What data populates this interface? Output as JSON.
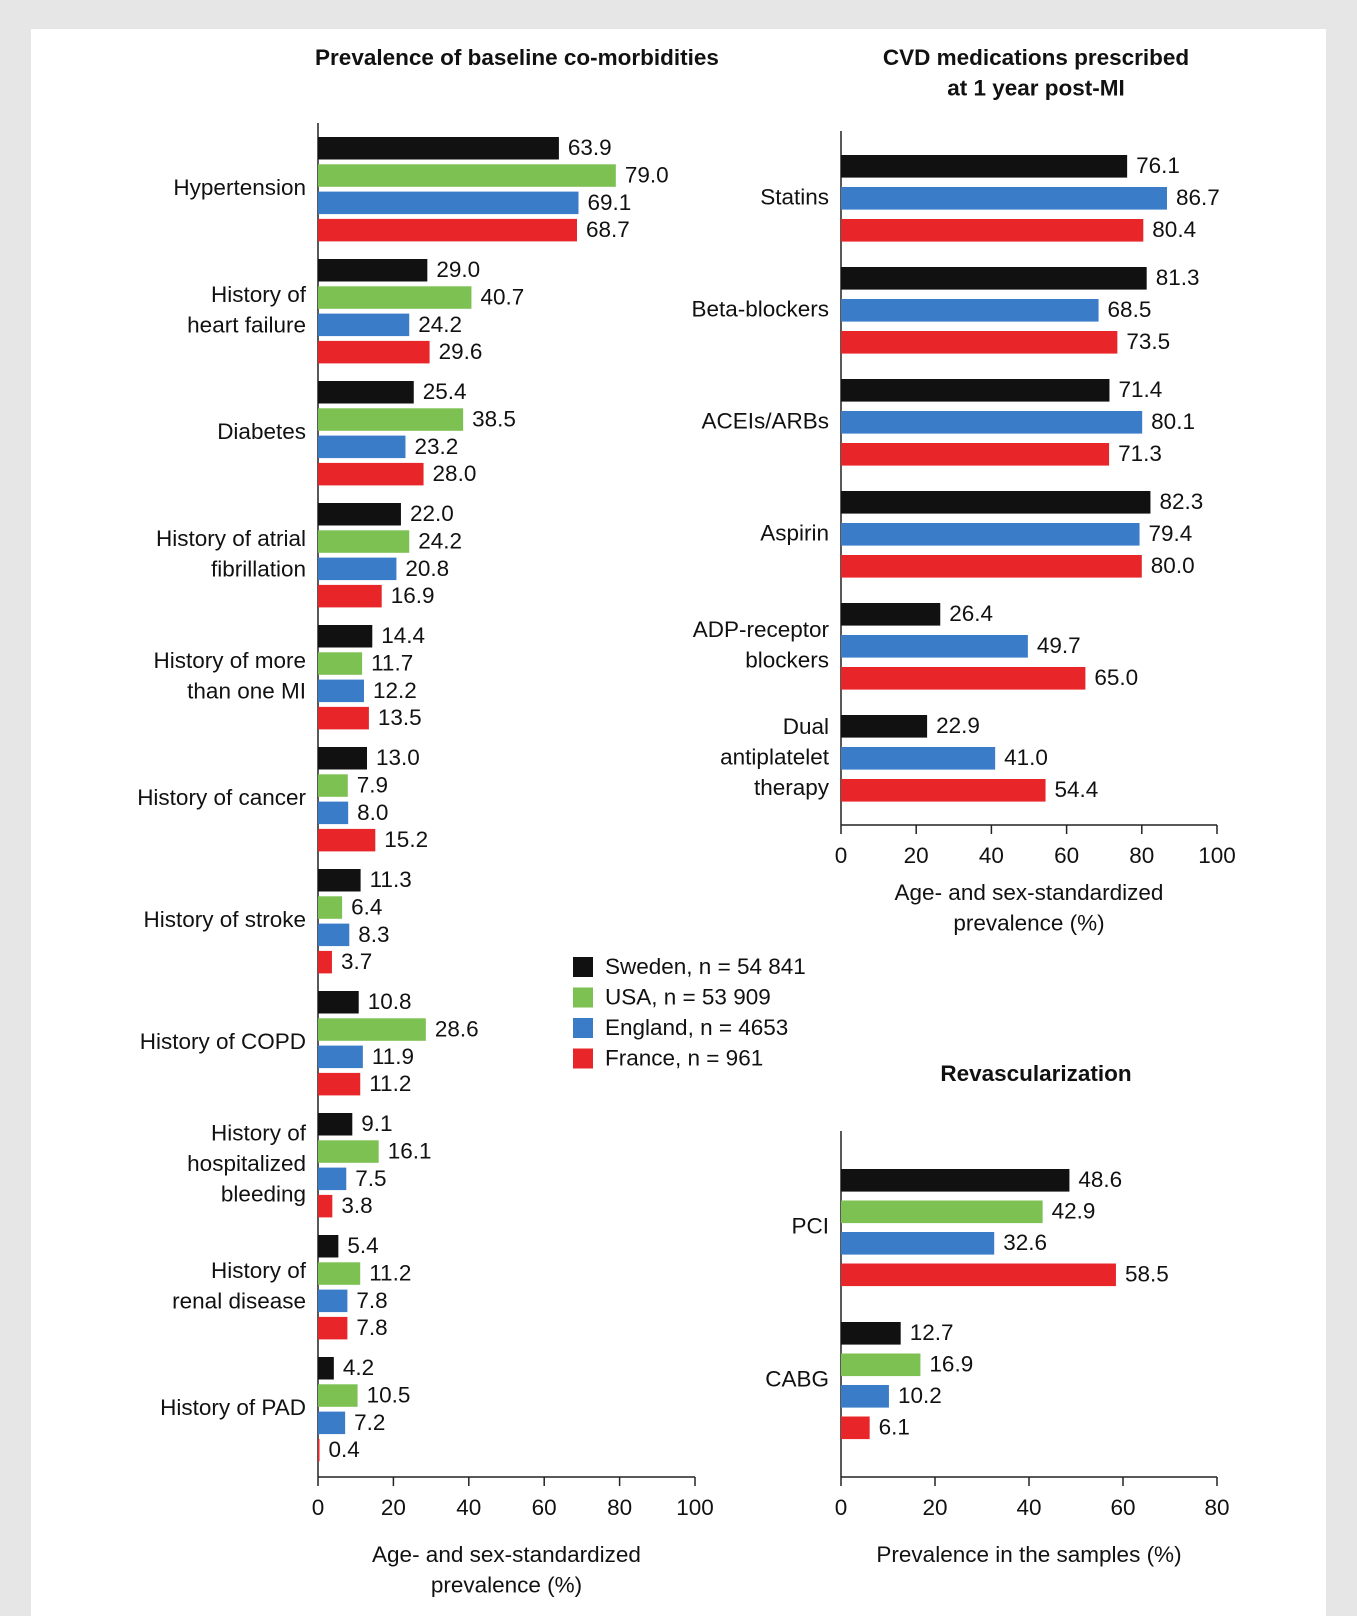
{
  "chart_data": [
    {
      "type": "bar",
      "orientation": "horizontal",
      "title": "Prevalence of baseline co-morbidities",
      "x_label": "Age- and sex-standardized\nprevalence (%)",
      "categories": [
        "Hypertension",
        "History of\nheart failure",
        "Diabetes",
        "History of atrial\nfibrillation",
        "History of more\nthan one MI",
        "History of cancer",
        "History of stroke",
        "History of COPD",
        "History of\nhospitalized\nbleeding",
        "History of\nrenal disease",
        "History of PAD"
      ],
      "series": [
        {
          "name": "Sweden, n = 54 841",
          "color": "#111111",
          "values": [
            63.9,
            29.0,
            25.4,
            22.0,
            14.4,
            13.0,
            11.3,
            10.8,
            9.1,
            5.4,
            4.2
          ],
          "value_labels": [
            "63.9",
            "29.0",
            "25.4",
            "22.0",
            "14.4",
            "13.0",
            "11.3",
            "10.8",
            "9.1",
            "5.4",
            "4.2"
          ]
        },
        {
          "name": "USA, n = 53 909",
          "color": "#7cc152",
          "values": [
            79.0,
            40.7,
            38.5,
            24.2,
            11.7,
            7.9,
            6.4,
            28.6,
            16.1,
            11.2,
            10.5
          ],
          "value_labels": [
            "79.0",
            "40.7",
            "38.5",
            "24.2",
            "11.7",
            "7.9",
            "6.4",
            "28.6",
            "16.1",
            "11.2",
            "10.5"
          ]
        },
        {
          "name": "England, n = 4653",
          "color": "#3b7cc9",
          "values": [
            69.1,
            24.2,
            23.2,
            20.8,
            12.2,
            8.0,
            8.3,
            11.9,
            7.5,
            7.8,
            7.2
          ],
          "value_labels": [
            "69.1",
            "24.2",
            "23.2",
            "20.8",
            "12.2",
            "8.0",
            "8.3",
            "11.9",
            "7.5",
            "7.8",
            "7.2"
          ]
        },
        {
          "name": "France, n = 961",
          "color": "#e8262a",
          "values": [
            68.7,
            29.6,
            28.0,
            16.9,
            13.5,
            15.2,
            3.7,
            11.2,
            3.8,
            7.8,
            0.4
          ],
          "value_labels": [
            "68.7",
            "29.6",
            "28.0",
            "16.9",
            "13.5",
            "15.2",
            "3.7",
            "11.2",
            "3.8",
            "7.8",
            "0.4"
          ]
        }
      ],
      "xlim": [
        0,
        100
      ],
      "xticks": [
        0,
        20,
        40,
        60,
        80,
        100
      ],
      "legend": true
    },
    {
      "type": "bar",
      "orientation": "horizontal",
      "title": "CVD medications prescribed\nat 1 year post-MI",
      "x_label": "Age- and sex-standardized\nprevalence (%)",
      "categories": [
        "Statins",
        "Beta-blockers",
        "ACEIs/ARBs",
        "Aspirin",
        "ADP-receptor\nblockers",
        "Dual\nantiplatelet\ntherapy"
      ],
      "series": [
        {
          "color": "#111111",
          "values": [
            76.1,
            81.3,
            71.4,
            82.3,
            26.4,
            22.9
          ]
        },
        {
          "color": "#3b7cc9",
          "values": [
            86.7,
            68.5,
            80.1,
            79.4,
            49.7,
            41.0
          ],
          "value_labels": [
            "86.7",
            "68.5",
            "80.1",
            "79.4",
            "49.7",
            "41.0"
          ]
        },
        {
          "color": "#e8262a",
          "values": [
            80.4,
            73.5,
            71.3,
            80.0,
            65.0,
            54.4
          ],
          "value_labels": [
            "80.4",
            "73.5",
            "71.3",
            "80.0",
            "65.0",
            "54.4"
          ]
        }
      ],
      "xlim": [
        0,
        100
      ],
      "xticks": [
        0,
        20,
        40,
        60,
        80,
        100
      ]
    },
    {
      "type": "bar",
      "orientation": "horizontal",
      "title": "Revascularization",
      "x_label": "Prevalence in the samples (%)",
      "categories": [
        "PCI",
        "CABG"
      ],
      "series": [
        {
          "color": "#111111",
          "values": [
            48.6,
            12.7
          ]
        },
        {
          "color": "#7cc152",
          "values": [
            42.9,
            16.9
          ]
        },
        {
          "color": "#3b7cc9",
          "values": [
            32.6,
            10.2
          ]
        },
        {
          "color": "#e8262a",
          "values": [
            58.5,
            6.1
          ]
        }
      ],
      "xlim": [
        0,
        80
      ],
      "xticks": [
        0,
        20,
        40,
        60,
        80
      ]
    }
  ]
}
